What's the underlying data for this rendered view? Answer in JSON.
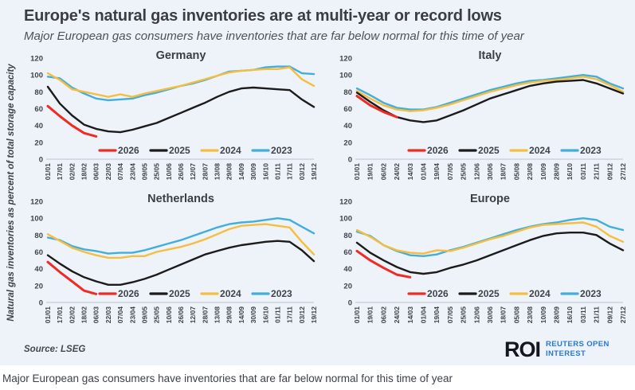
{
  "header": {
    "title": "Europe's natural gas inventories are at multi-year or record lows",
    "subtitle": "Major European gas consumers have inventories that are far below normal for this time of year"
  },
  "y_axis_label": "Natural gas inventories as percent of total storage capacity",
  "footer": {
    "source": "Source:  LSEG",
    "logo_text": "ROI",
    "logo_subtext": "REUTERS OPEN INTEREST"
  },
  "bottom_caption": "Major European gas consumers have inventories that are far below normal for this time of year",
  "colors": {
    "red": "#ee2c23",
    "black": "#1b1b1b",
    "yellow": "#f6be3e",
    "blue": "#42aedd",
    "axis": "#c7ccd4",
    "card_bg": "#eef2f9",
    "roi_blue": "#2678d9"
  },
  "chart_data": [
    {
      "type": "line",
      "title": "Germany",
      "ylim": [
        0,
        120
      ],
      "yticks": [
        0,
        20,
        40,
        60,
        80,
        100,
        120
      ],
      "legend_position": "bottom-inside",
      "grid": false,
      "x_labels": [
        "01/01",
        "17/01",
        "02/02",
        "18/02",
        "06/03",
        "22/03",
        "07/04",
        "23/04",
        "09/05",
        "25/05",
        "10/06",
        "26/06",
        "12/07",
        "28/07",
        "13/08",
        "29/08",
        "14/09",
        "30/09",
        "16/10",
        "01/11",
        "17/11",
        "03/12",
        "19/12"
      ],
      "series": [
        {
          "name": "2026",
          "color_key": "red",
          "values": [
            63,
            51,
            40,
            31,
            27,
            null,
            null,
            null,
            null,
            null,
            null,
            null,
            null,
            null,
            null,
            null,
            null,
            null,
            null,
            null,
            null,
            null,
            null
          ]
        },
        {
          "name": "2025",
          "color_key": "black",
          "values": [
            86,
            66,
            52,
            41,
            36,
            33,
            32,
            35,
            39,
            43,
            49,
            55,
            61,
            67,
            74,
            80,
            84,
            85,
            84,
            83,
            82,
            71,
            62
          ]
        },
        {
          "name": "2024",
          "color_key": "yellow",
          "values": [
            102,
            94,
            83,
            80,
            77,
            74,
            77,
            74,
            78,
            81,
            84,
            87,
            91,
            95,
            99,
            103,
            105,
            106,
            107,
            107,
            109,
            95,
            87
          ]
        },
        {
          "name": "2023",
          "color_key": "blue",
          "values": [
            98,
            96,
            85,
            78,
            72,
            70,
            71,
            72,
            76,
            79,
            83,
            87,
            90,
            94,
            99,
            104,
            105,
            106,
            109,
            110,
            110,
            102,
            101
          ]
        }
      ]
    },
    {
      "type": "line",
      "title": "Italy",
      "ylim": [
        0,
        120
      ],
      "yticks": [
        0,
        20,
        40,
        60,
        80,
        100,
        120
      ],
      "legend_position": "bottom-inside",
      "grid": false,
      "x_labels": [
        "01/01",
        "19/01",
        "06/02",
        "24/02",
        "14/03",
        "01/04",
        "19/04",
        "07/05",
        "25/05",
        "12/06",
        "30/06",
        "18/07",
        "05/08",
        "23/08",
        "10/09",
        "28/09",
        "16/10",
        "03/11",
        "21/11",
        "09/12",
        "27/12"
      ],
      "series": [
        {
          "name": "2026",
          "color_key": "red",
          "values": [
            75,
            64,
            56,
            50,
            null,
            null,
            null,
            null,
            null,
            null,
            null,
            null,
            null,
            null,
            null,
            null,
            null,
            null,
            null,
            null,
            null
          ]
        },
        {
          "name": "2025",
          "color_key": "black",
          "values": [
            79,
            68,
            58,
            50,
            46,
            44,
            46,
            52,
            58,
            65,
            72,
            77,
            82,
            87,
            90,
            92,
            93,
            94,
            90,
            84,
            78
          ]
        },
        {
          "name": "2024",
          "color_key": "yellow",
          "values": [
            81,
            72,
            64,
            59,
            57,
            58,
            61,
            65,
            70,
            75,
            80,
            84,
            88,
            91,
            93,
            94,
            96,
            98,
            95,
            88,
            80
          ]
        },
        {
          "name": "2023",
          "color_key": "blue",
          "values": [
            84,
            76,
            67,
            61,
            59,
            59,
            62,
            67,
            72,
            77,
            82,
            86,
            90,
            93,
            94,
            96,
            98,
            100,
            98,
            90,
            84
          ]
        }
      ]
    },
    {
      "type": "line",
      "title": "Netherlands",
      "ylim": [
        0,
        120
      ],
      "yticks": [
        0,
        20,
        40,
        60,
        80,
        100,
        120
      ],
      "legend_position": "bottom-inside",
      "grid": false,
      "x_labels": [
        "01/01",
        "17/01",
        "02/02",
        "18/02",
        "06/03",
        "22/03",
        "07/04",
        "23/04",
        "09/05",
        "25/05",
        "10/06",
        "26/06",
        "12/07",
        "28/07",
        "13/08",
        "29/08",
        "14/09",
        "30/09",
        "16/10",
        "01/11",
        "17/11",
        "03/12",
        "19/12"
      ],
      "series": [
        {
          "name": "2026",
          "color_key": "red",
          "values": [
            48,
            36,
            25,
            14,
            10,
            null,
            null,
            null,
            null,
            null,
            null,
            null,
            null,
            null,
            null,
            null,
            null,
            null,
            null,
            null,
            null,
            null,
            null
          ]
        },
        {
          "name": "2025",
          "color_key": "black",
          "values": [
            56,
            46,
            37,
            30,
            25,
            21,
            21,
            24,
            28,
            33,
            39,
            45,
            51,
            57,
            61,
            65,
            68,
            70,
            72,
            73,
            72,
            62,
            49
          ]
        },
        {
          "name": "2024",
          "color_key": "yellow",
          "values": [
            81,
            73,
            65,
            60,
            56,
            53,
            53,
            55,
            55,
            60,
            63,
            66,
            70,
            75,
            81,
            87,
            91,
            92,
            93,
            91,
            89,
            72,
            57
          ]
        },
        {
          "name": "2023",
          "color_key": "blue",
          "values": [
            77,
            74,
            67,
            63,
            61,
            58,
            59,
            59,
            62,
            66,
            70,
            74,
            79,
            84,
            89,
            93,
            95,
            96,
            98,
            100,
            98,
            90,
            82
          ]
        }
      ]
    },
    {
      "type": "line",
      "title": "Europe",
      "ylim": [
        0,
        120
      ],
      "yticks": [
        0,
        20,
        40,
        60,
        80,
        100,
        120
      ],
      "legend_position": "bottom-inside",
      "grid": false,
      "x_labels": [
        "01/01",
        "19/01",
        "06/02",
        "24/02",
        "14/03",
        "01/04",
        "19/04",
        "07/05",
        "25/05",
        "12/06",
        "30/06",
        "18/07",
        "05/08",
        "23/08",
        "10/09",
        "28/09",
        "16/10",
        "03/11",
        "21/11",
        "09/12",
        "27/12"
      ],
      "series": [
        {
          "name": "2026",
          "color_key": "red",
          "values": [
            61,
            50,
            41,
            33,
            30,
            null,
            null,
            null,
            null,
            null,
            null,
            null,
            null,
            null,
            null,
            null,
            null,
            null,
            null,
            null,
            null
          ]
        },
        {
          "name": "2025",
          "color_key": "black",
          "values": [
            71,
            59,
            50,
            42,
            36,
            34,
            36,
            41,
            45,
            50,
            56,
            62,
            68,
            74,
            79,
            82,
            83,
            83,
            80,
            70,
            62
          ]
        },
        {
          "name": "2024",
          "color_key": "yellow",
          "values": [
            86,
            78,
            68,
            62,
            59,
            58,
            62,
            61,
            65,
            70,
            75,
            79,
            84,
            89,
            92,
            93,
            94,
            95,
            90,
            79,
            72
          ]
        },
        {
          "name": "2023",
          "color_key": "blue",
          "values": [
            84,
            79,
            68,
            61,
            56,
            55,
            57,
            62,
            66,
            71,
            76,
            81,
            86,
            90,
            93,
            95,
            98,
            100,
            98,
            90,
            86
          ]
        }
      ]
    }
  ]
}
